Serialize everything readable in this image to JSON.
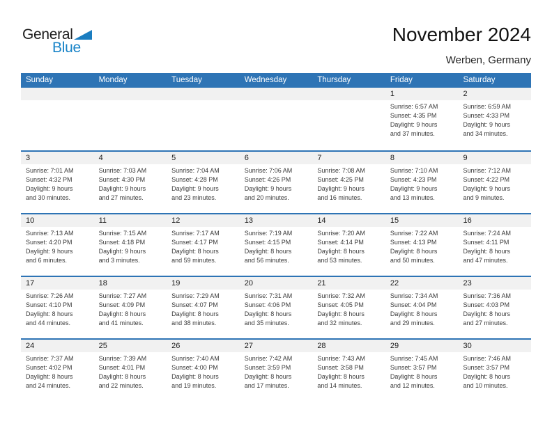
{
  "logo": {
    "part1": "General",
    "part2": "Blue"
  },
  "title": "November 2024",
  "subtitle": "Werben, Germany",
  "colors": {
    "header_bg": "#2E74B5",
    "row_border": "#2E74B5",
    "day_band_bg": "#F1F1F1",
    "logo_blue": "#1984C8",
    "logo_triangle": "#1A7DC0"
  },
  "weekdays": [
    "Sunday",
    "Monday",
    "Tuesday",
    "Wednesday",
    "Thursday",
    "Friday",
    "Saturday"
  ],
  "weeks": [
    [
      null,
      null,
      null,
      null,
      null,
      {
        "day": "1",
        "lines": [
          "Sunrise: 6:57 AM",
          "Sunset: 4:35 PM",
          "Daylight: 9 hours",
          "and 37 minutes."
        ]
      },
      {
        "day": "2",
        "lines": [
          "Sunrise: 6:59 AM",
          "Sunset: 4:33 PM",
          "Daylight: 9 hours",
          "and 34 minutes."
        ]
      }
    ],
    [
      {
        "day": "3",
        "lines": [
          "Sunrise: 7:01 AM",
          "Sunset: 4:32 PM",
          "Daylight: 9 hours",
          "and 30 minutes."
        ]
      },
      {
        "day": "4",
        "lines": [
          "Sunrise: 7:03 AM",
          "Sunset: 4:30 PM",
          "Daylight: 9 hours",
          "and 27 minutes."
        ]
      },
      {
        "day": "5",
        "lines": [
          "Sunrise: 7:04 AM",
          "Sunset: 4:28 PM",
          "Daylight: 9 hours",
          "and 23 minutes."
        ]
      },
      {
        "day": "6",
        "lines": [
          "Sunrise: 7:06 AM",
          "Sunset: 4:26 PM",
          "Daylight: 9 hours",
          "and 20 minutes."
        ]
      },
      {
        "day": "7",
        "lines": [
          "Sunrise: 7:08 AM",
          "Sunset: 4:25 PM",
          "Daylight: 9 hours",
          "and 16 minutes."
        ]
      },
      {
        "day": "8",
        "lines": [
          "Sunrise: 7:10 AM",
          "Sunset: 4:23 PM",
          "Daylight: 9 hours",
          "and 13 minutes."
        ]
      },
      {
        "day": "9",
        "lines": [
          "Sunrise: 7:12 AM",
          "Sunset: 4:22 PM",
          "Daylight: 9 hours",
          "and 9 minutes."
        ]
      }
    ],
    [
      {
        "day": "10",
        "lines": [
          "Sunrise: 7:13 AM",
          "Sunset: 4:20 PM",
          "Daylight: 9 hours",
          "and 6 minutes."
        ]
      },
      {
        "day": "11",
        "lines": [
          "Sunrise: 7:15 AM",
          "Sunset: 4:18 PM",
          "Daylight: 9 hours",
          "and 3 minutes."
        ]
      },
      {
        "day": "12",
        "lines": [
          "Sunrise: 7:17 AM",
          "Sunset: 4:17 PM",
          "Daylight: 8 hours",
          "and 59 minutes."
        ]
      },
      {
        "day": "13",
        "lines": [
          "Sunrise: 7:19 AM",
          "Sunset: 4:15 PM",
          "Daylight: 8 hours",
          "and 56 minutes."
        ]
      },
      {
        "day": "14",
        "lines": [
          "Sunrise: 7:20 AM",
          "Sunset: 4:14 PM",
          "Daylight: 8 hours",
          "and 53 minutes."
        ]
      },
      {
        "day": "15",
        "lines": [
          "Sunrise: 7:22 AM",
          "Sunset: 4:13 PM",
          "Daylight: 8 hours",
          "and 50 minutes."
        ]
      },
      {
        "day": "16",
        "lines": [
          "Sunrise: 7:24 AM",
          "Sunset: 4:11 PM",
          "Daylight: 8 hours",
          "and 47 minutes."
        ]
      }
    ],
    [
      {
        "day": "17",
        "lines": [
          "Sunrise: 7:26 AM",
          "Sunset: 4:10 PM",
          "Daylight: 8 hours",
          "and 44 minutes."
        ]
      },
      {
        "day": "18",
        "lines": [
          "Sunrise: 7:27 AM",
          "Sunset: 4:09 PM",
          "Daylight: 8 hours",
          "and 41 minutes."
        ]
      },
      {
        "day": "19",
        "lines": [
          "Sunrise: 7:29 AM",
          "Sunset: 4:07 PM",
          "Daylight: 8 hours",
          "and 38 minutes."
        ]
      },
      {
        "day": "20",
        "lines": [
          "Sunrise: 7:31 AM",
          "Sunset: 4:06 PM",
          "Daylight: 8 hours",
          "and 35 minutes."
        ]
      },
      {
        "day": "21",
        "lines": [
          "Sunrise: 7:32 AM",
          "Sunset: 4:05 PM",
          "Daylight: 8 hours",
          "and 32 minutes."
        ]
      },
      {
        "day": "22",
        "lines": [
          "Sunrise: 7:34 AM",
          "Sunset: 4:04 PM",
          "Daylight: 8 hours",
          "and 29 minutes."
        ]
      },
      {
        "day": "23",
        "lines": [
          "Sunrise: 7:36 AM",
          "Sunset: 4:03 PM",
          "Daylight: 8 hours",
          "and 27 minutes."
        ]
      }
    ],
    [
      {
        "day": "24",
        "lines": [
          "Sunrise: 7:37 AM",
          "Sunset: 4:02 PM",
          "Daylight: 8 hours",
          "and 24 minutes."
        ]
      },
      {
        "day": "25",
        "lines": [
          "Sunrise: 7:39 AM",
          "Sunset: 4:01 PM",
          "Daylight: 8 hours",
          "and 22 minutes."
        ]
      },
      {
        "day": "26",
        "lines": [
          "Sunrise: 7:40 AM",
          "Sunset: 4:00 PM",
          "Daylight: 8 hours",
          "and 19 minutes."
        ]
      },
      {
        "day": "27",
        "lines": [
          "Sunrise: 7:42 AM",
          "Sunset: 3:59 PM",
          "Daylight: 8 hours",
          "and 17 minutes."
        ]
      },
      {
        "day": "28",
        "lines": [
          "Sunrise: 7:43 AM",
          "Sunset: 3:58 PM",
          "Daylight: 8 hours",
          "and 14 minutes."
        ]
      },
      {
        "day": "29",
        "lines": [
          "Sunrise: 7:45 AM",
          "Sunset: 3:57 PM",
          "Daylight: 8 hours",
          "and 12 minutes."
        ]
      },
      {
        "day": "30",
        "lines": [
          "Sunrise: 7:46 AM",
          "Sunset: 3:57 PM",
          "Daylight: 8 hours",
          "and 10 minutes."
        ]
      }
    ]
  ]
}
